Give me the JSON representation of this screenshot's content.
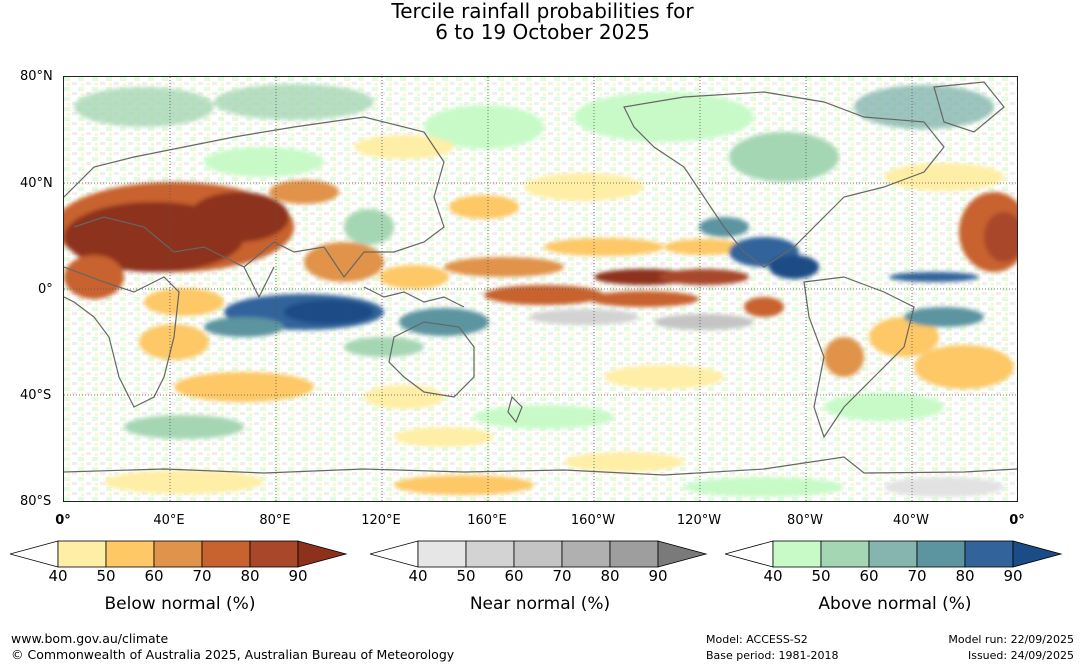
{
  "title": {
    "line1": "Tercile rainfall probabilities for",
    "line2": "6 to 19 October 2025"
  },
  "map": {
    "lat_labels": [
      "80°N",
      "40°N",
      "0°",
      "40°S",
      "80°S"
    ],
    "lon_labels": [
      "0°",
      "40°E",
      "80°E",
      "120°E",
      "160°E",
      "160°W",
      "120°W",
      "80°W",
      "40°W",
      "0°"
    ],
    "dominant_signals": [
      {
        "region": "South & Central Asia / Middle East",
        "category": "below",
        "intensity": "80-90"
      },
      {
        "region": "Equatorial Pacific",
        "category": "below",
        "intensity": "70-90"
      },
      {
        "region": "Eastern Indian Ocean",
        "category": "above",
        "intensity": "70-90"
      },
      {
        "region": "Central America / Caribbean",
        "category": "above",
        "intensity": "70-90"
      },
      {
        "region": "North Africa",
        "category": "below",
        "intensity": "70-90"
      }
    ]
  },
  "legends": [
    {
      "id": "below",
      "title": "Below normal (%)",
      "ticks": [
        "40",
        "50",
        "60",
        "70",
        "80",
        "90"
      ],
      "colors": [
        "#ffffff",
        "#ffeea6",
        "#fdc865",
        "#e0934a",
        "#c8622f",
        "#a9472a",
        "#8d311c"
      ]
    },
    {
      "id": "near",
      "title": "Near normal (%)",
      "ticks": [
        "40",
        "50",
        "60",
        "70",
        "80",
        "90"
      ],
      "colors": [
        "#ffffff",
        "#e6e6e6",
        "#d3d3d3",
        "#c4c4c4",
        "#b0b0b0",
        "#9e9e9e",
        "#7a7a7a"
      ]
    },
    {
      "id": "above",
      "title": "Above normal (%)",
      "ticks": [
        "40",
        "50",
        "60",
        "70",
        "80",
        "90"
      ],
      "colors": [
        "#ffffff",
        "#c8fac8",
        "#a5d6b4",
        "#85b5ae",
        "#5c94a0",
        "#32649b",
        "#1c4c86"
      ]
    }
  ],
  "footer": {
    "website": "www.bom.gov.au/climate",
    "copyright": "© Commonwealth of Australia 2025, Australian Bureau of Meteorology",
    "model": "Model: ACCESS-S2",
    "base_period": "Base period: 1981-2018",
    "model_run": "Model run: 22/09/2025",
    "issued": "Issued: 24/09/2025"
  }
}
